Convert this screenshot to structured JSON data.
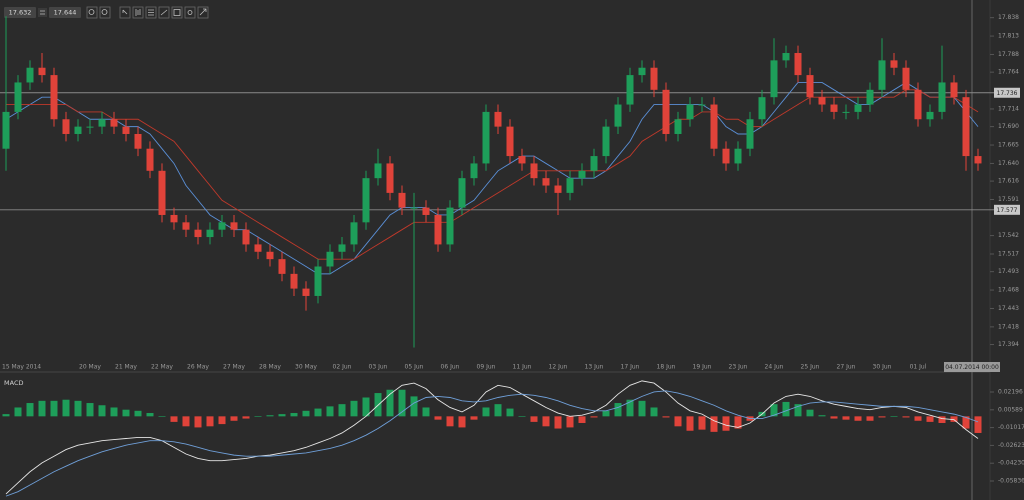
{
  "toolbar": {
    "bid": "17.632",
    "ask": "17.644"
  },
  "chart_data": [
    {
      "type": "candlestick",
      "categories": [
        "15 May 2014",
        null,
        null,
        null,
        null,
        null,
        null,
        "20 May",
        null,
        null,
        "21 May",
        null,
        null,
        "22 May",
        null,
        null,
        "26 May",
        null,
        null,
        "27 May",
        null,
        null,
        "28 May",
        null,
        null,
        "30 May",
        null,
        null,
        "02 Jun",
        null,
        null,
        "03 Jun",
        null,
        null,
        "05 Jun",
        null,
        null,
        "06 Jun",
        null,
        null,
        "09 Jun",
        null,
        null,
        "11 Jun",
        null,
        null,
        "12 Jun",
        null,
        null,
        "13 Jun",
        null,
        null,
        "17 Jun",
        null,
        null,
        "18 Jun",
        null,
        null,
        "19 Jun",
        null,
        null,
        "23 Jun",
        null,
        null,
        "24 Jun",
        null,
        null,
        "25 Jun",
        null,
        null,
        "27 Jun",
        null,
        null,
        "30 Jun",
        null,
        null,
        "01 Jul",
        null,
        null,
        null,
        null,
        null
      ],
      "open": [
        17.66,
        17.71,
        17.75,
        17.77,
        17.76,
        17.7,
        17.68,
        17.69,
        17.69,
        17.7,
        17.69,
        17.68,
        17.66,
        17.63,
        17.57,
        17.56,
        17.55,
        17.54,
        17.55,
        17.56,
        17.55,
        17.53,
        17.52,
        17.51,
        17.49,
        17.47,
        17.46,
        17.5,
        17.52,
        17.53,
        17.56,
        17.62,
        17.64,
        17.6,
        17.58,
        17.58,
        17.57,
        17.53,
        17.58,
        17.62,
        17.64,
        17.71,
        17.69,
        17.65,
        17.64,
        17.62,
        17.61,
        17.6,
        17.62,
        17.63,
        17.65,
        17.69,
        17.72,
        17.76,
        17.77,
        17.74,
        17.68,
        17.7,
        17.72,
        17.72,
        17.66,
        17.64,
        17.66,
        17.7,
        17.73,
        17.78,
        17.79,
        17.76,
        17.73,
        17.72,
        17.71,
        17.71,
        17.72,
        17.74,
        17.78,
        17.77,
        17.74,
        17.7,
        17.71,
        17.75,
        17.73,
        17.65
      ],
      "high": [
        17.84,
        17.76,
        17.78,
        17.79,
        17.77,
        17.71,
        17.7,
        17.7,
        17.71,
        17.71,
        17.7,
        17.69,
        17.67,
        17.64,
        17.58,
        17.57,
        17.56,
        17.56,
        17.57,
        17.57,
        17.56,
        17.54,
        17.53,
        17.52,
        17.5,
        17.48,
        17.51,
        17.53,
        17.54,
        17.57,
        17.63,
        17.66,
        17.65,
        17.61,
        17.6,
        17.59,
        17.58,
        17.59,
        17.63,
        17.65,
        17.72,
        17.72,
        17.7,
        17.66,
        17.65,
        17.63,
        17.62,
        17.63,
        17.64,
        17.66,
        17.7,
        17.73,
        17.77,
        17.78,
        17.78,
        17.75,
        17.71,
        17.73,
        17.73,
        17.73,
        17.67,
        17.67,
        17.71,
        17.74,
        17.81,
        17.8,
        17.8,
        17.77,
        17.74,
        17.73,
        17.72,
        17.73,
        17.75,
        17.81,
        17.79,
        17.78,
        17.75,
        17.72,
        17.8,
        17.76,
        17.74,
        17.66
      ],
      "low": [
        17.63,
        17.7,
        17.74,
        17.75,
        17.69,
        17.67,
        17.67,
        17.68,
        17.68,
        17.68,
        17.67,
        17.65,
        17.62,
        17.56,
        17.55,
        17.54,
        17.53,
        17.53,
        17.54,
        17.54,
        17.52,
        17.51,
        17.5,
        17.48,
        17.46,
        17.44,
        17.45,
        17.49,
        17.51,
        17.52,
        17.55,
        17.61,
        17.59,
        17.57,
        17.39,
        17.56,
        17.52,
        17.52,
        17.57,
        17.61,
        17.63,
        17.68,
        17.64,
        17.63,
        17.61,
        17.6,
        17.57,
        17.59,
        17.61,
        17.62,
        17.64,
        17.68,
        17.71,
        17.75,
        17.73,
        17.67,
        17.67,
        17.69,
        17.71,
        17.65,
        17.63,
        17.63,
        17.65,
        17.69,
        17.72,
        17.77,
        17.75,
        17.72,
        17.71,
        17.7,
        17.7,
        17.7,
        17.71,
        17.73,
        17.76,
        17.73,
        17.69,
        17.69,
        17.7,
        17.72,
        17.63,
        17.63
      ],
      "close": [
        17.71,
        17.75,
        17.77,
        17.76,
        17.7,
        17.68,
        17.69,
        17.69,
        17.7,
        17.69,
        17.68,
        17.66,
        17.63,
        17.57,
        17.56,
        17.55,
        17.54,
        17.55,
        17.56,
        17.55,
        17.53,
        17.52,
        17.51,
        17.49,
        17.47,
        17.46,
        17.5,
        17.52,
        17.53,
        17.56,
        17.62,
        17.64,
        17.6,
        17.58,
        17.58,
        17.57,
        17.53,
        17.58,
        17.62,
        17.64,
        17.71,
        17.69,
        17.65,
        17.64,
        17.62,
        17.61,
        17.6,
        17.62,
        17.63,
        17.65,
        17.69,
        17.72,
        17.76,
        17.77,
        17.74,
        17.68,
        17.7,
        17.72,
        17.72,
        17.66,
        17.64,
        17.66,
        17.7,
        17.73,
        17.78,
        17.79,
        17.76,
        17.73,
        17.72,
        17.71,
        17.71,
        17.72,
        17.74,
        17.78,
        17.77,
        17.74,
        17.7,
        17.71,
        17.75,
        17.73,
        17.65,
        17.64
      ],
      "up_color": "#1e9e5a",
      "down_color": "#e0433a",
      "series": [
        {
          "color": "#5a8fd6",
          "values": [
            17.7,
            17.71,
            17.72,
            17.73,
            17.73,
            17.72,
            17.71,
            17.7,
            17.7,
            17.7,
            17.69,
            17.69,
            17.68,
            17.66,
            17.64,
            17.61,
            17.59,
            17.57,
            17.56,
            17.55,
            17.55,
            17.54,
            17.53,
            17.52,
            17.51,
            17.5,
            17.49,
            17.49,
            17.5,
            17.51,
            17.53,
            17.55,
            17.57,
            17.58,
            17.58,
            17.58,
            17.57,
            17.57,
            17.58,
            17.59,
            17.61,
            17.63,
            17.64,
            17.65,
            17.65,
            17.64,
            17.63,
            17.62,
            17.62,
            17.62,
            17.63,
            17.65,
            17.67,
            17.7,
            17.72,
            17.72,
            17.72,
            17.72,
            17.72,
            17.71,
            17.69,
            17.68,
            17.68,
            17.69,
            17.71,
            17.73,
            17.75,
            17.75,
            17.75,
            17.74,
            17.73,
            17.72,
            17.72,
            17.73,
            17.74,
            17.75,
            17.74,
            17.73,
            17.73,
            17.73,
            17.71,
            17.69
          ]
        },
        {
          "color": "#c0392b",
          "values": [
            17.72,
            17.72,
            17.72,
            17.72,
            17.72,
            17.72,
            17.71,
            17.71,
            17.71,
            17.7,
            17.7,
            17.7,
            17.69,
            17.68,
            17.67,
            17.65,
            17.63,
            17.61,
            17.59,
            17.58,
            17.57,
            17.56,
            17.55,
            17.54,
            17.53,
            17.52,
            17.51,
            17.51,
            17.51,
            17.51,
            17.52,
            17.53,
            17.54,
            17.55,
            17.56,
            17.56,
            17.56,
            17.56,
            17.57,
            17.58,
            17.59,
            17.6,
            17.61,
            17.62,
            17.63,
            17.63,
            17.63,
            17.63,
            17.63,
            17.63,
            17.63,
            17.64,
            17.65,
            17.67,
            17.68,
            17.69,
            17.7,
            17.7,
            17.71,
            17.71,
            17.7,
            17.7,
            17.69,
            17.69,
            17.7,
            17.71,
            17.72,
            17.73,
            17.73,
            17.73,
            17.73,
            17.73,
            17.73,
            17.73,
            17.73,
            17.74,
            17.74,
            17.73,
            17.73,
            17.73,
            17.72,
            17.71
          ]
        }
      ],
      "ylim": [
        17.373,
        17.862
      ],
      "yticks": [
        17.838,
        17.813,
        17.788,
        17.764,
        17.714,
        {
          "value": 17.69,
          "label": "17.690"
        },
        17.665,
        {
          "value": 17.64,
          "label": "17.640"
        },
        17.616,
        17.591,
        17.542,
        17.517,
        17.493,
        17.468,
        17.443,
        17.418,
        17.394
      ],
      "hlines": [
        17.736,
        17.577
      ],
      "hline_color": "#8a8a8a",
      "cursor_label": "04.07.2014 00:00",
      "grid": false
    },
    {
      "type": "macd",
      "title": "MACD",
      "histogram": {
        "up_color": "#1e9e5a",
        "down_color": "#e0433a",
        "values": [
          0.002,
          0.008,
          0.012,
          0.014,
          0.014,
          0.015,
          0.014,
          0.012,
          0.01,
          0.008,
          0.006,
          0.005,
          0.003,
          0.0,
          -0.005,
          -0.009,
          -0.01,
          -0.009,
          -0.007,
          -0.004,
          -0.002,
          0.0,
          0.001,
          0.002,
          0.003,
          0.005,
          0.007,
          0.009,
          0.011,
          0.014,
          0.017,
          0.021,
          0.024,
          0.024,
          0.018,
          0.008,
          -0.003,
          -0.009,
          -0.01,
          -0.003,
          0.008,
          0.011,
          0.007,
          0.0,
          -0.005,
          -0.009,
          -0.011,
          -0.01,
          -0.006,
          -0.001,
          0.005,
          0.012,
          0.015,
          0.014,
          0.008,
          -0.001,
          -0.009,
          -0.013,
          -0.012,
          -0.014,
          -0.013,
          -0.011,
          -0.004,
          0.004,
          0.011,
          0.013,
          0.011,
          0.006,
          0.001,
          -0.002,
          -0.003,
          -0.004,
          -0.004,
          -0.001,
          0.0,
          -0.001,
          -0.004,
          -0.005,
          -0.006,
          -0.005,
          -0.011,
          -0.015
        ]
      },
      "series": [
        {
          "color": "#e6e6e6",
          "values": [
            -0.07,
            -0.06,
            -0.05,
            -0.042,
            -0.036,
            -0.03,
            -0.026,
            -0.024,
            -0.022,
            -0.021,
            -0.02,
            -0.019,
            -0.019,
            -0.022,
            -0.028,
            -0.034,
            -0.038,
            -0.04,
            -0.04,
            -0.039,
            -0.038,
            -0.036,
            -0.035,
            -0.033,
            -0.031,
            -0.028,
            -0.024,
            -0.02,
            -0.015,
            -0.008,
            0.0,
            0.01,
            0.02,
            0.028,
            0.03,
            0.025,
            0.015,
            0.008,
            0.004,
            0.01,
            0.022,
            0.028,
            0.026,
            0.02,
            0.014,
            0.008,
            0.003,
            0.0,
            0.001,
            0.004,
            0.01,
            0.02,
            0.028,
            0.032,
            0.03,
            0.022,
            0.012,
            0.005,
            0.002,
            -0.004,
            -0.008,
            -0.01,
            -0.006,
            0.002,
            0.012,
            0.018,
            0.02,
            0.018,
            0.014,
            0.011,
            0.009,
            0.007,
            0.006,
            0.008,
            0.009,
            0.008,
            0.004,
            0.001,
            -0.002,
            -0.003,
            -0.012,
            -0.02
          ]
        },
        {
          "color": "#6f9fd8",
          "values": [
            -0.072,
            -0.068,
            -0.062,
            -0.056,
            -0.05,
            -0.045,
            -0.04,
            -0.036,
            -0.032,
            -0.029,
            -0.026,
            -0.024,
            -0.022,
            -0.022,
            -0.023,
            -0.025,
            -0.028,
            -0.031,
            -0.033,
            -0.035,
            -0.036,
            -0.036,
            -0.036,
            -0.035,
            -0.034,
            -0.033,
            -0.031,
            -0.029,
            -0.026,
            -0.022,
            -0.017,
            -0.011,
            -0.004,
            0.004,
            0.012,
            0.017,
            0.018,
            0.017,
            0.014,
            0.013,
            0.014,
            0.017,
            0.019,
            0.02,
            0.019,
            0.017,
            0.014,
            0.01,
            0.007,
            0.005,
            0.005,
            0.008,
            0.013,
            0.018,
            0.022,
            0.023,
            0.021,
            0.018,
            0.014,
            0.01,
            0.005,
            0.001,
            -0.002,
            -0.002,
            0.001,
            0.005,
            0.009,
            0.012,
            0.013,
            0.013,
            0.012,
            0.011,
            0.01,
            0.009,
            0.009,
            0.009,
            0.008,
            0.006,
            0.004,
            0.002,
            -0.001,
            -0.005
          ]
        }
      ],
      "ylim": [
        -0.0755,
        0.0346
      ],
      "yticks": [
        0.02196,
        0.00589,
        -0.01017,
        -0.02623,
        {
          "value": -0.0423,
          "label": "-0.04230"
        },
        -0.05836
      ],
      "grid": false
    }
  ]
}
